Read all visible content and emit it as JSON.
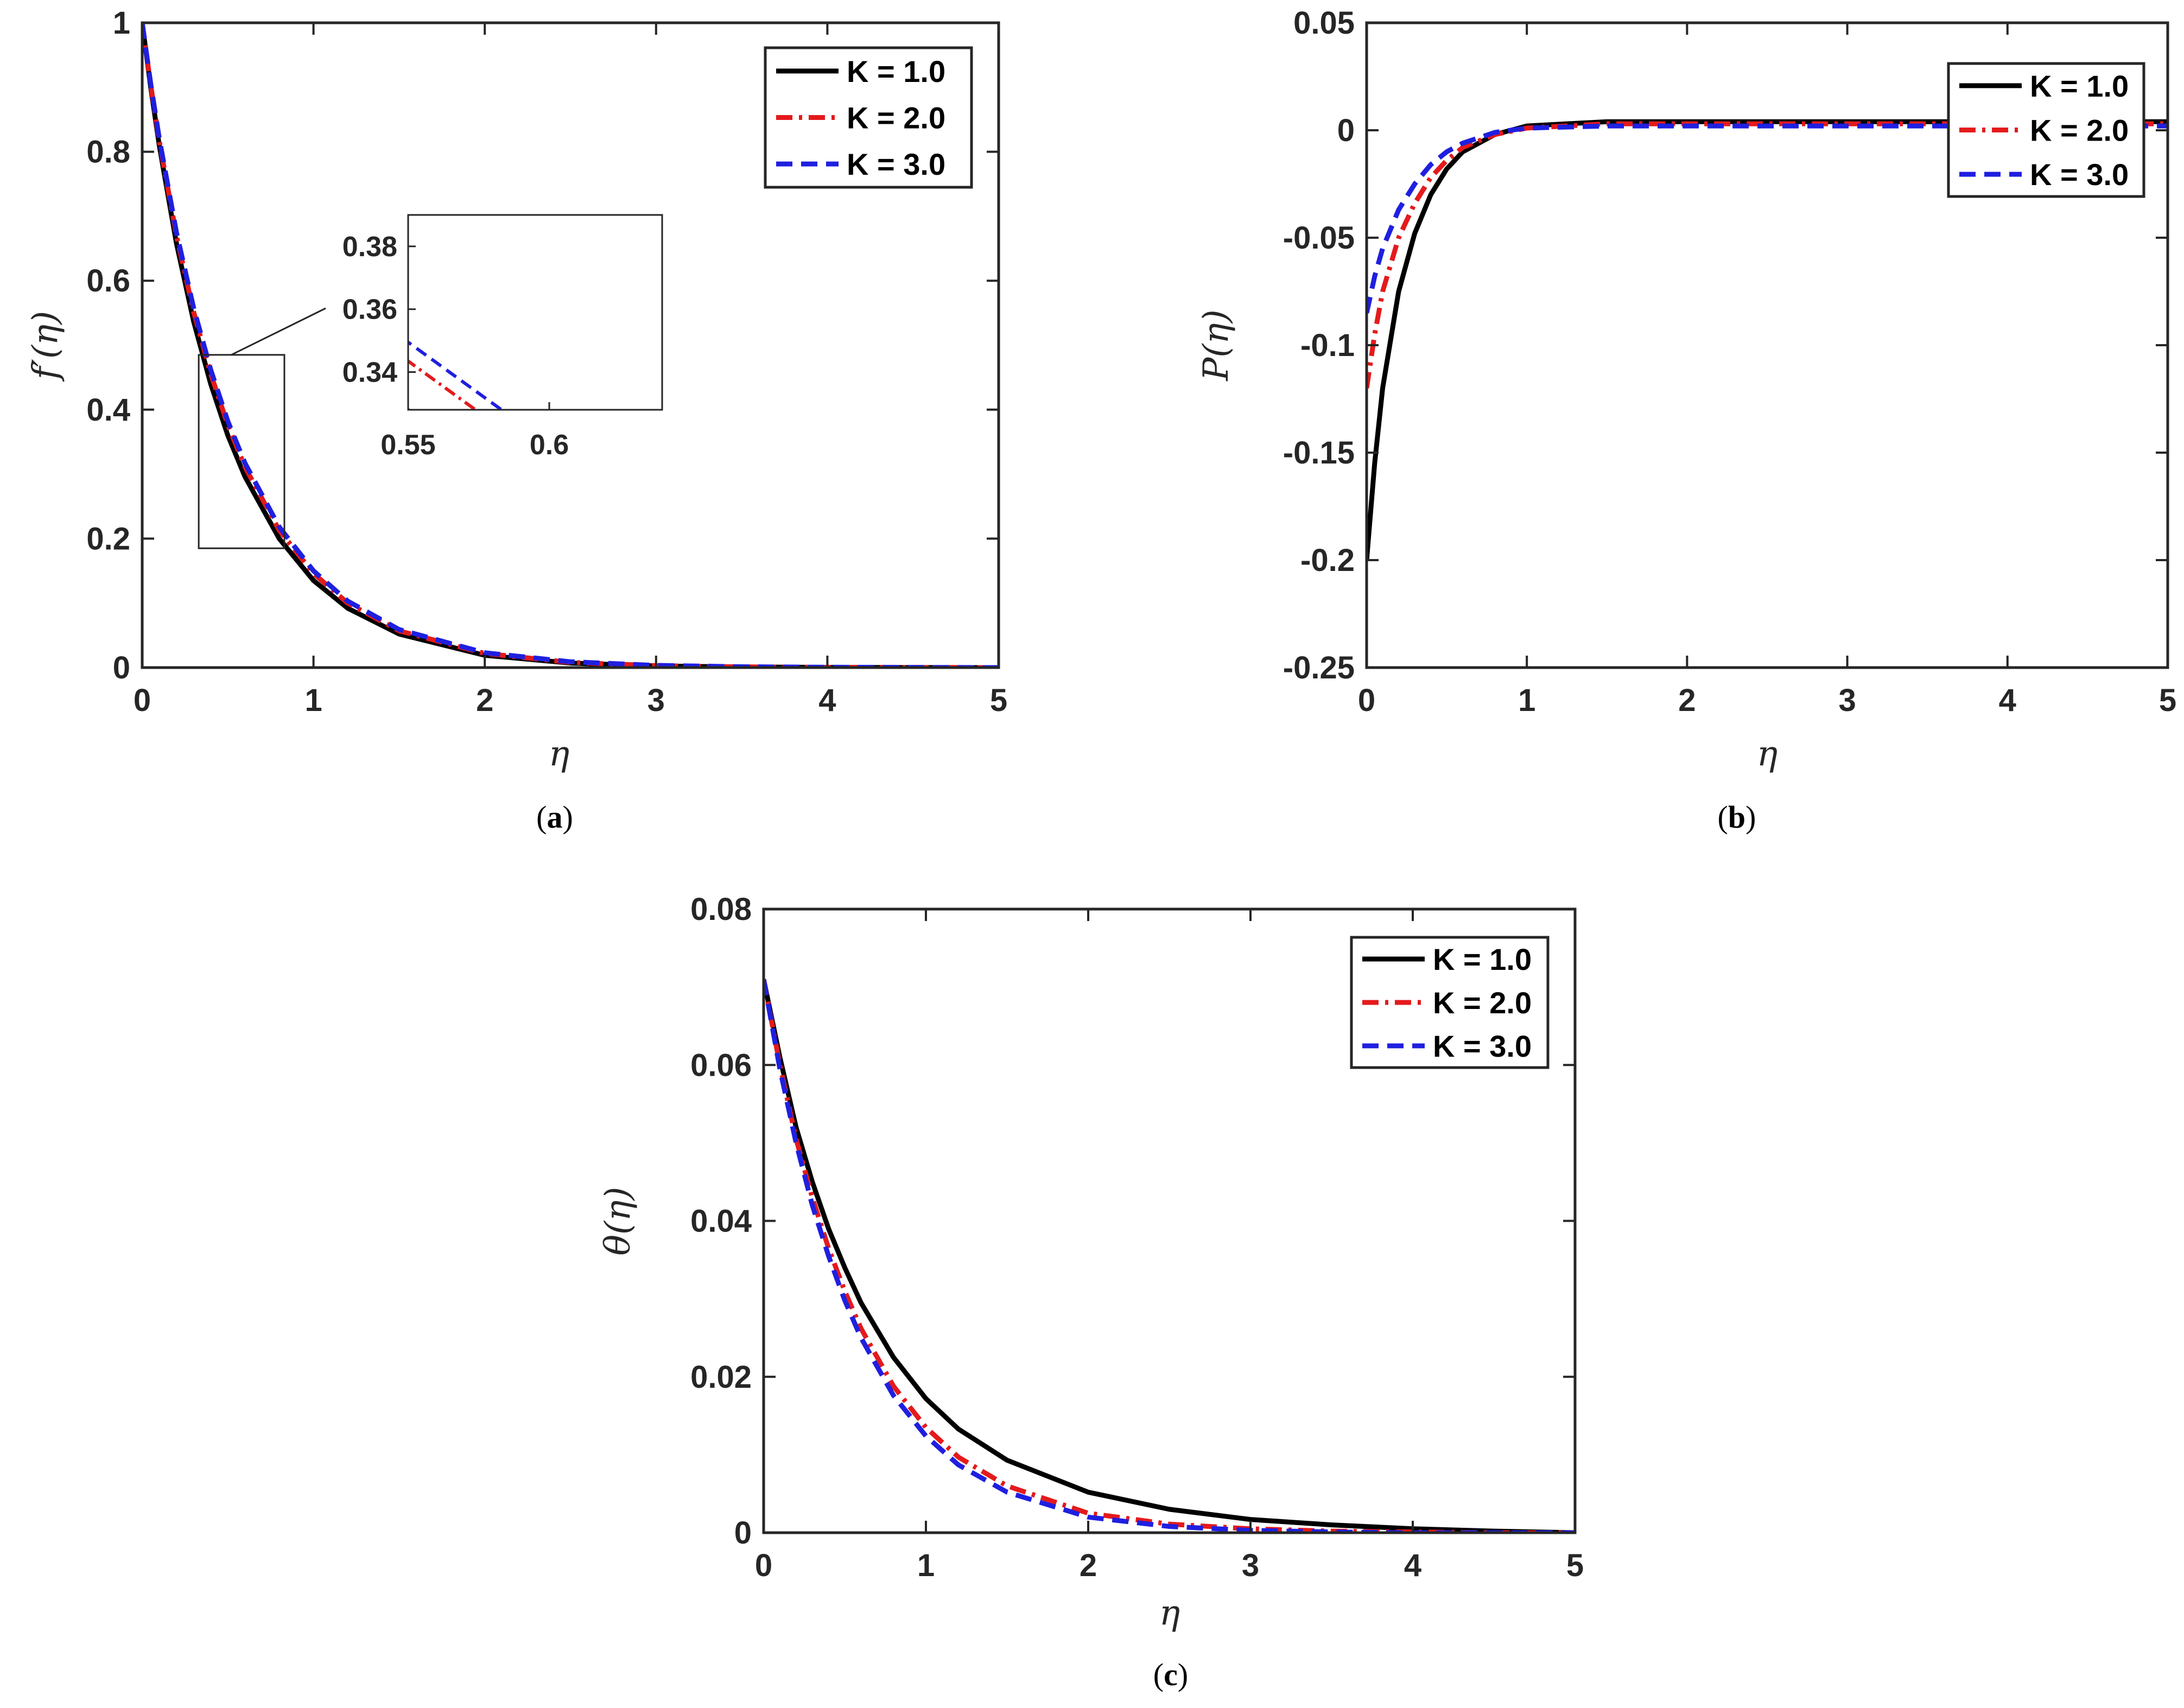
{
  "series_styles": [
    {
      "name": "K = 1.0",
      "color": "#000000",
      "dash": "solid"
    },
    {
      "name": "K = 2.0",
      "color": "#e41a1c",
      "dash": "dashdot"
    },
    {
      "name": "K = 3.0",
      "color": "#1f1fe0",
      "dash": "dashed"
    }
  ],
  "chart_data": [
    {
      "panel": "a",
      "caption_letter": "a",
      "type": "line",
      "xlabel": "η",
      "ylabel": "f′(η)",
      "xlim": [
        0,
        5
      ],
      "ylim": [
        0,
        1
      ],
      "xticks": [
        "0",
        "1",
        "2",
        "3",
        "4",
        "5"
      ],
      "yticks": [
        "0",
        "0.2",
        "0.4",
        "0.6",
        "0.8",
        "1"
      ],
      "legend_position": "top-right",
      "grid": false,
      "x": [
        0,
        0.05,
        0.1,
        0.2,
        0.3,
        0.4,
        0.5,
        0.6,
        0.8,
        1.0,
        1.2,
        1.5,
        2.0,
        2.5,
        3.0,
        3.5,
        4.0,
        4.5,
        5.0
      ],
      "series": [
        {
          "name": "K = 1.0",
          "values": [
            1.0,
            0.899,
            0.809,
            0.658,
            0.537,
            0.44,
            0.36,
            0.296,
            0.2,
            0.135,
            0.092,
            0.052,
            0.019,
            0.007,
            0.0025,
            0.0009,
            0.0003,
            0.0001,
            0.0
          ]
        },
        {
          "name": "K = 2.0",
          "values": [
            1.0,
            0.903,
            0.816,
            0.67,
            0.552,
            0.456,
            0.376,
            0.311,
            0.213,
            0.146,
            0.1,
            0.057,
            0.022,
            0.008,
            0.003,
            0.0011,
            0.0004,
            0.0002,
            0.0
          ]
        },
        {
          "name": "K = 3.0",
          "values": [
            1.0,
            0.905,
            0.82,
            0.675,
            0.558,
            0.462,
            0.382,
            0.317,
            0.218,
            0.15,
            0.103,
            0.059,
            0.023,
            0.009,
            0.0034,
            0.0013,
            0.0005,
            0.0002,
            0.0
          ]
        }
      ],
      "inset": {
        "xlim": [
          0.55,
          0.64
        ],
        "ylim": [
          0.328,
          0.39
        ],
        "xticks": [
          "0.55",
          "0.6"
        ],
        "yticks": [
          "0.34",
          "0.36",
          "0.38"
        ],
        "zoom_box": {
          "xlim": [
            0.33,
            0.83
          ],
          "ylim": [
            0.185,
            0.485
          ]
        }
      }
    },
    {
      "panel": "b",
      "caption_letter": "b",
      "type": "line",
      "xlabel": "η",
      "ylabel": "P(η)",
      "xlim": [
        0,
        5
      ],
      "ylim": [
        -0.25,
        0.05
      ],
      "xticks": [
        "0",
        "1",
        "2",
        "3",
        "4",
        "5"
      ],
      "yticks": [
        "-0.25",
        "-0.2",
        "-0.15",
        "-0.1",
        "-0.05",
        "0",
        "0.05"
      ],
      "legend_position": "top-right",
      "grid": false,
      "x": [
        0,
        0.05,
        0.1,
        0.2,
        0.3,
        0.4,
        0.5,
        0.6,
        0.8,
        1.0,
        1.5,
        2.0,
        3.0,
        4.0,
        5.0
      ],
      "series": [
        {
          "name": "K = 1.0",
          "values": [
            -0.2,
            -0.155,
            -0.12,
            -0.075,
            -0.048,
            -0.03,
            -0.018,
            -0.01,
            -0.002,
            0.002,
            0.004,
            0.004,
            0.004,
            0.004,
            0.004
          ]
        },
        {
          "name": "K = 2.0",
          "values": [
            -0.12,
            -0.095,
            -0.075,
            -0.05,
            -0.034,
            -0.022,
            -0.014,
            -0.008,
            -0.002,
            0.001,
            0.003,
            0.003,
            0.003,
            0.003,
            0.003
          ]
        },
        {
          "name": "K = 3.0",
          "values": [
            -0.085,
            -0.068,
            -0.055,
            -0.037,
            -0.025,
            -0.016,
            -0.01,
            -0.006,
            -0.001,
            0.001,
            0.002,
            0.002,
            0.002,
            0.002,
            0.002
          ]
        }
      ]
    },
    {
      "panel": "c",
      "caption_letter": "c",
      "type": "line",
      "xlabel": "η",
      "ylabel": "θ(η)",
      "xlim": [
        0,
        5
      ],
      "ylim": [
        0,
        0.08
      ],
      "xticks": [
        "0",
        "1",
        "2",
        "3",
        "4",
        "5"
      ],
      "yticks": [
        "0",
        "0.02",
        "0.04",
        "0.06",
        "0.08"
      ],
      "legend_position": "top-right",
      "grid": false,
      "x": [
        0,
        0.1,
        0.2,
        0.3,
        0.4,
        0.5,
        0.6,
        0.8,
        1.0,
        1.2,
        1.5,
        2.0,
        2.5,
        3.0,
        3.5,
        4.0,
        4.5,
        5.0
      ],
      "series": [
        {
          "name": "K = 1.0",
          "values": [
            0.071,
            0.061,
            0.052,
            0.045,
            0.039,
            0.034,
            0.0295,
            0.0225,
            0.0172,
            0.0133,
            0.0093,
            0.0052,
            0.003,
            0.0017,
            0.001,
            0.0005,
            0.0002,
            0.0
          ]
        },
        {
          "name": "K = 2.0",
          "values": [
            0.071,
            0.06,
            0.0505,
            0.043,
            0.0365,
            0.031,
            0.0262,
            0.0188,
            0.0135,
            0.0097,
            0.006,
            0.0025,
            0.0011,
            0.0005,
            0.0002,
            0.0001,
            0.0,
            0.0
          ]
        },
        {
          "name": "K = 3.0",
          "values": [
            0.071,
            0.0595,
            0.05,
            0.042,
            0.0355,
            0.0298,
            0.025,
            0.0176,
            0.0124,
            0.0087,
            0.0052,
            0.002,
            0.0008,
            0.0003,
            0.0001,
            0.0,
            0.0,
            0.0
          ]
        }
      ]
    }
  ]
}
